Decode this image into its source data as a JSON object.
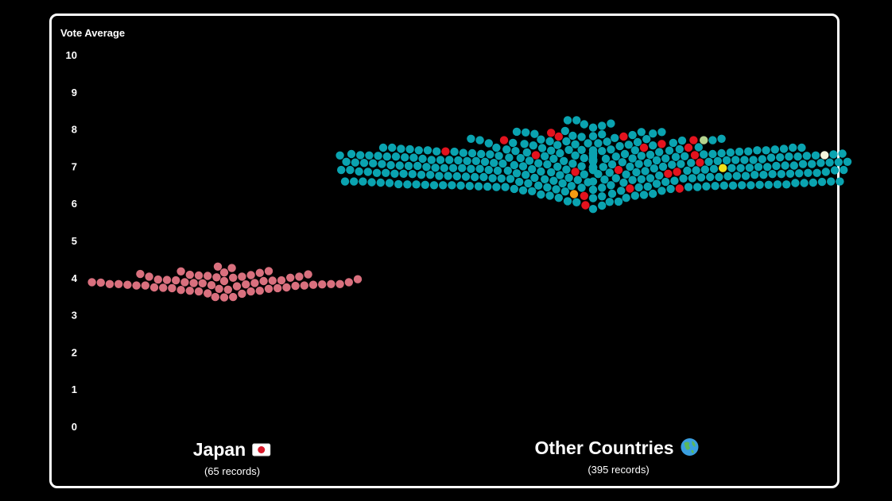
{
  "chart_data": {
    "type": "scatter",
    "ylabel": "Vote Average",
    "ylim": [
      0,
      10
    ],
    "yticks": [
      "10",
      "9",
      "8",
      "7",
      "6",
      "5",
      "4",
      "3",
      "2",
      "1",
      "0"
    ],
    "groups": [
      {
        "name": "Japan",
        "sub": "(65 records)",
        "icon": "japan-flag-icon",
        "count": 65,
        "color": "#d9707e",
        "center": 3.85,
        "min": 2.9,
        "max": 4.3
      },
      {
        "name": "Other Countries",
        "sub": "(395 records)",
        "icon": "globe-icon",
        "count": 395,
        "color": "#0aa3b0",
        "center": 7.0,
        "min": 5.2,
        "max": 8.5,
        "highlights": [
          {
            "color": "#e3131e",
            "values": [
              7.9,
              7.4,
              7.3,
              7.8,
              7.7,
              7.5,
              7.8,
              7.7,
              7.5,
              7.6,
              6.9,
              6.85,
              6.8,
              6.4,
              6.2,
              5.95,
              6.85,
              7.1,
              6.4,
              7.3
            ]
          },
          {
            "color": "#f39c12",
            "values": [
              6.25
            ]
          },
          {
            "color": "#f5f5dc",
            "values": [
              7.3
            ]
          },
          {
            "color": "#b5d38e",
            "values": [
              7.7
            ]
          },
          {
            "color": "#f1e21b",
            "values": [
              6.95
            ]
          }
        ]
      }
    ],
    "grid": false
  }
}
